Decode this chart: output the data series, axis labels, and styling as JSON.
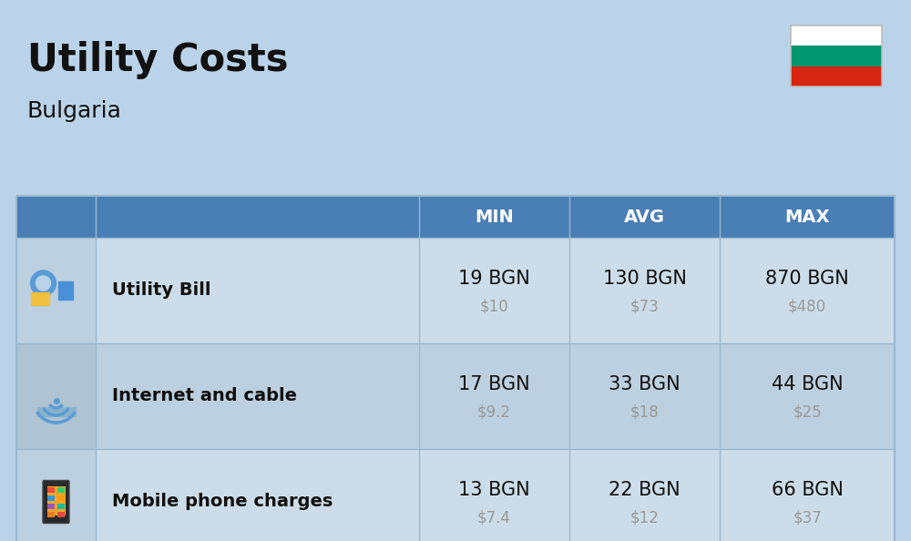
{
  "title": "Utility Costs",
  "subtitle": "Bulgaria",
  "background_color": "#bad3e8",
  "header_color": "#4a7fb5",
  "header_text_color": "#ffffff",
  "row_color_1": "#ccdde9",
  "row_color_2": "#bdd0e0",
  "icon_col_color_1": "#bdd0e0",
  "icon_col_color_2": "#afc3d3",
  "columns": [
    "MIN",
    "AVG",
    "MAX"
  ],
  "rows": [
    {
      "label": "Utility Bill",
      "min_bgn": "19 BGN",
      "min_usd": "$10",
      "avg_bgn": "130 BGN",
      "avg_usd": "$73",
      "max_bgn": "870 BGN",
      "max_usd": "$480"
    },
    {
      "label": "Internet and cable",
      "min_bgn": "17 BGN",
      "min_usd": "$9.2",
      "avg_bgn": "33 BGN",
      "avg_usd": "$18",
      "max_bgn": "44 BGN",
      "max_usd": "$25"
    },
    {
      "label": "Mobile phone charges",
      "min_bgn": "13 BGN",
      "min_usd": "$7.4",
      "avg_bgn": "22 BGN",
      "avg_usd": "$12",
      "max_bgn": "66 BGN",
      "max_usd": "$37"
    }
  ],
  "flag_colors": [
    "#ffffff",
    "#00966e",
    "#d62612"
  ],
  "title_fontsize": 30,
  "subtitle_fontsize": 18,
  "label_fontsize": 14,
  "value_fontsize": 15,
  "usd_fontsize": 12,
  "header_fontsize": 14
}
